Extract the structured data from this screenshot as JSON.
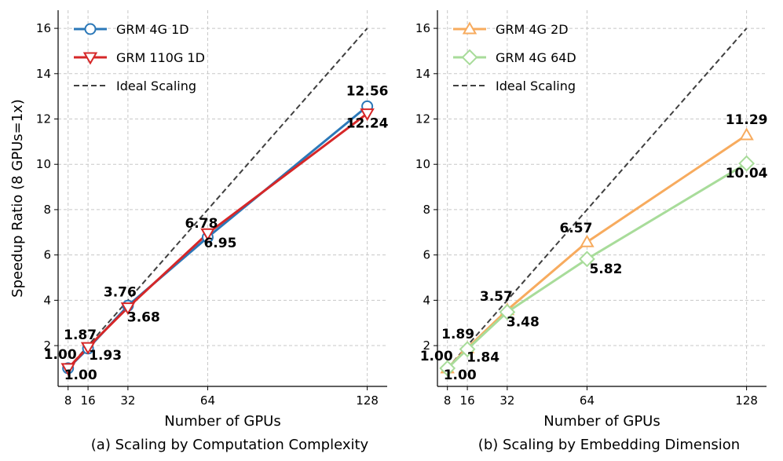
{
  "chart_data": [
    {
      "type": "line",
      "caption": "(a) Scaling by Computation Complexity",
      "xlabel": "Number of GPUs",
      "ylabel": "Speedup Ratio (8 GPUs=1x)",
      "x": [
        8,
        16,
        32,
        64,
        128
      ],
      "xticks": [
        "8",
        "16",
        "32",
        "64",
        "128"
      ],
      "yticks": [
        "2",
        "4",
        "6",
        "8",
        "10",
        "12",
        "14",
        "16"
      ],
      "xlim": [
        4,
        136
      ],
      "ylim": [
        0.2,
        16.8
      ],
      "grid": true,
      "legend_position": "top-left",
      "series": [
        {
          "name": "GRM 4G 1D",
          "values": [
            1.0,
            1.87,
            3.76,
            6.78,
            12.56
          ],
          "labels": [
            "1.00",
            "1.87",
            "3.76",
            "6.78",
            "12.56"
          ],
          "label_pos": [
            "above",
            "above",
            "above",
            "above",
            "above"
          ],
          "color": "#2b78b8",
          "marker": "circle"
        },
        {
          "name": "GRM 110G 1D",
          "values": [
            1.0,
            1.93,
            3.68,
            6.95,
            12.24
          ],
          "labels": [
            "1.00",
            "1.93",
            "3.68",
            "6.95",
            "12.24"
          ],
          "label_pos": [
            "below",
            "below",
            "below",
            "below",
            "below"
          ],
          "color": "#d62728",
          "marker": "triangle-down"
        },
        {
          "name": "Ideal Scaling",
          "values": [
            1,
            2,
            4,
            8,
            16
          ],
          "color": "#404040",
          "dashed": true
        }
      ]
    },
    {
      "type": "line",
      "caption": "(b) Scaling by Embedding Dimension",
      "xlabel": "Number of GPUs",
      "ylabel": "",
      "x": [
        8,
        16,
        32,
        64,
        128
      ],
      "xticks": [
        "8",
        "16",
        "32",
        "64",
        "128"
      ],
      "yticks": [
        "2",
        "4",
        "6",
        "8",
        "10",
        "12",
        "14",
        "16"
      ],
      "xlim": [
        4,
        136
      ],
      "ylim": [
        0.2,
        16.8
      ],
      "grid": true,
      "legend_position": "top-left",
      "series": [
        {
          "name": "GRM 4G 2D",
          "values": [
            1.0,
            1.89,
            3.57,
            6.57,
            11.29
          ],
          "labels": [
            "1.00",
            "1.89",
            "3.57",
            "6.57",
            "11.29"
          ],
          "label_pos": [
            "above",
            "above",
            "above",
            "above",
            "above"
          ],
          "color": "#f7ab5e",
          "marker": "triangle-up"
        },
        {
          "name": "GRM 4G 64D",
          "values": [
            1.0,
            1.84,
            3.48,
            5.82,
            10.04
          ],
          "labels": [
            "1.00",
            "1.84",
            "3.48",
            "5.82",
            "10.04"
          ],
          "label_pos": [
            "below",
            "below",
            "below",
            "below",
            "below"
          ],
          "color": "#a8dc9a",
          "marker": "diamond"
        },
        {
          "name": "Ideal Scaling",
          "values": [
            1,
            2,
            4,
            8,
            16
          ],
          "color": "#404040",
          "dashed": true
        }
      ]
    }
  ]
}
